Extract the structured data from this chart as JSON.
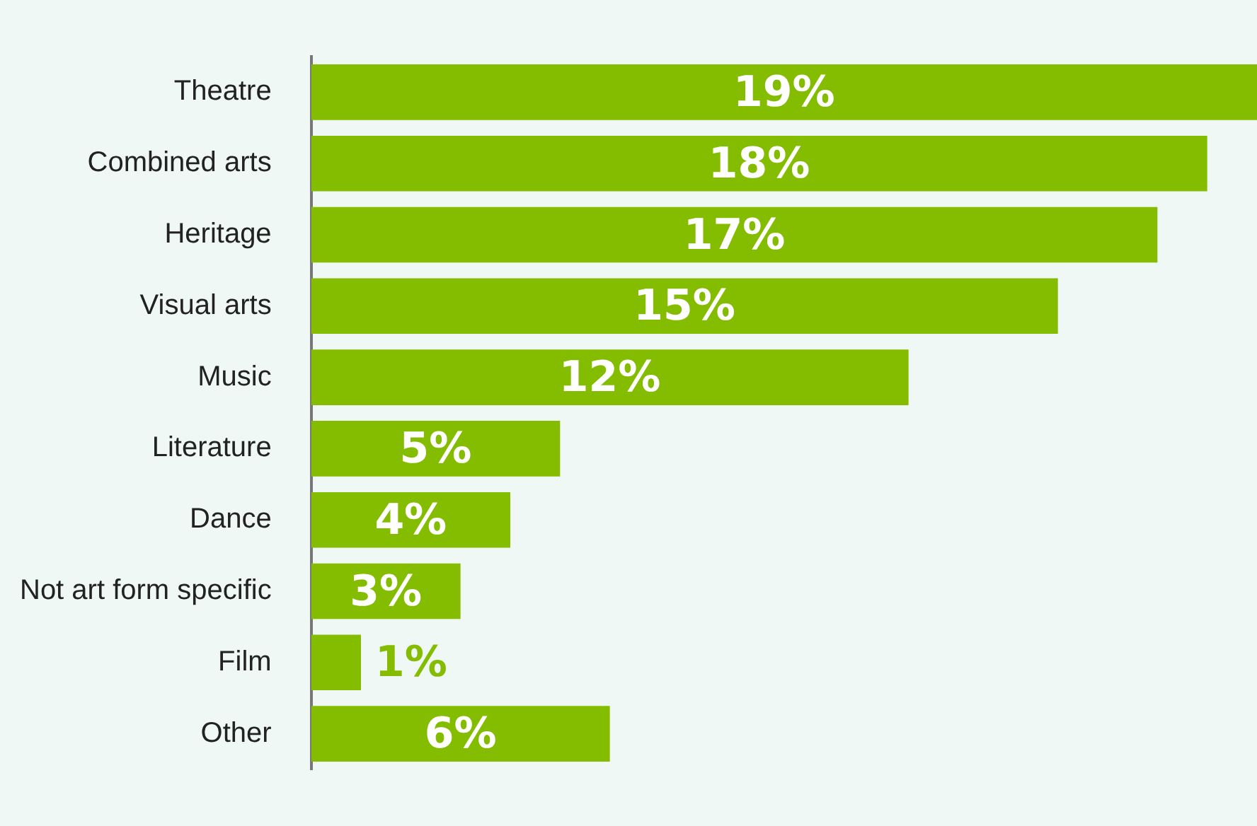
{
  "chart_data": {
    "type": "bar",
    "orientation": "horizontal",
    "categories": [
      "Theatre",
      "Combined arts",
      "Heritage",
      "Visual arts",
      "Music",
      "Literature",
      "Dance",
      "Not art form specific",
      "Film",
      "Other"
    ],
    "values": [
      19,
      18,
      17,
      15,
      12,
      5,
      4,
      3,
      1,
      6
    ],
    "value_labels": [
      "19%",
      "18%",
      "17%",
      "15%",
      "12%",
      "5%",
      "4%",
      "3%",
      "1%",
      "6%"
    ],
    "color": "#84bd00",
    "xlim": [
      0,
      19
    ]
  }
}
